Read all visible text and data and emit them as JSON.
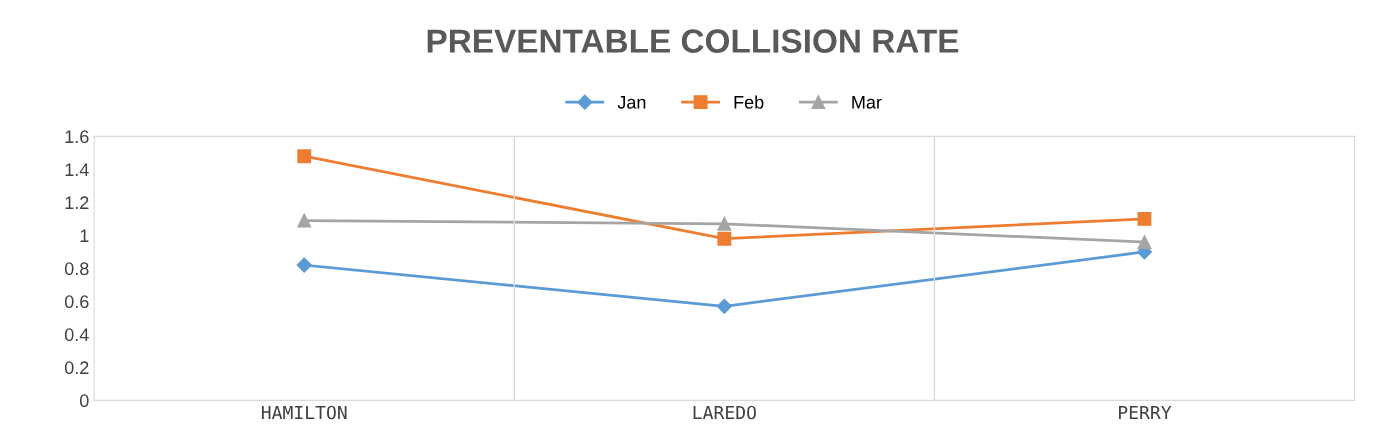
{
  "chart_data": {
    "type": "line",
    "title": "PREVENTABLE COLLISION RATE",
    "categories": [
      "HAMILTON",
      "LAREDO",
      "PERRY"
    ],
    "series": [
      {
        "name": "Jan",
        "color": "#5b9bd5",
        "marker": "diamond",
        "values": [
          0.82,
          0.57,
          0.9
        ]
      },
      {
        "name": "Feb",
        "color": "#ed7d31",
        "marker": "square",
        "values": [
          1.48,
          0.98,
          1.1
        ]
      },
      {
        "name": "Mar",
        "color": "#a5a5a5",
        "marker": "triangle",
        "values": [
          1.09,
          1.07,
          0.96
        ]
      }
    ],
    "ylim": [
      0,
      1.6
    ],
    "yticks": [
      0,
      0.2,
      0.4,
      0.6,
      0.8,
      1,
      1.2,
      1.4,
      1.6
    ],
    "grid": "x",
    "legend": "top"
  }
}
